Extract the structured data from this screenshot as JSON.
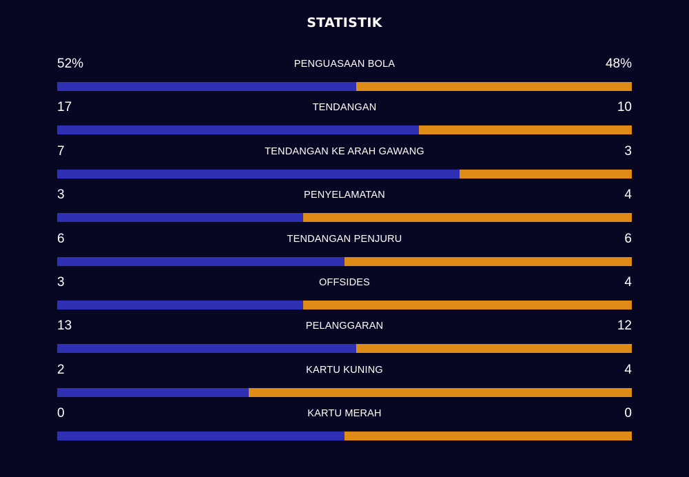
{
  "title": "STATISTIK",
  "colors": {
    "background": "#080723",
    "home": "#2f2fb3",
    "away": "#df8b18"
  },
  "stats": [
    {
      "label": "PENGUASAAN BOLA",
      "left": "52%",
      "right": "48%",
      "left_value": 52,
      "right_value": 48
    },
    {
      "label": "TENDANGAN",
      "left": "17",
      "right": "10",
      "left_value": 17,
      "right_value": 10
    },
    {
      "label": "TENDANGAN KE ARAH GAWANG",
      "left": "7",
      "right": "3",
      "left_value": 7,
      "right_value": 3
    },
    {
      "label": "PENYELAMATAN",
      "left": "3",
      "right": "4",
      "left_value": 3,
      "right_value": 4
    },
    {
      "label": "TENDANGAN PENJURU",
      "left": "6",
      "right": "6",
      "left_value": 6,
      "right_value": 6
    },
    {
      "label": "OFFSIDES",
      "left": "3",
      "right": "4",
      "left_value": 3,
      "right_value": 4
    },
    {
      "label": "PELANGGARAN",
      "left": "13",
      "right": "12",
      "left_value": 13,
      "right_value": 12
    },
    {
      "label": "KARTU KUNING",
      "left": "2",
      "right": "4",
      "left_value": 2,
      "right_value": 4
    },
    {
      "label": "KARTU MERAH",
      "left": "0",
      "right": "0",
      "left_value": 0,
      "right_value": 0
    }
  ]
}
